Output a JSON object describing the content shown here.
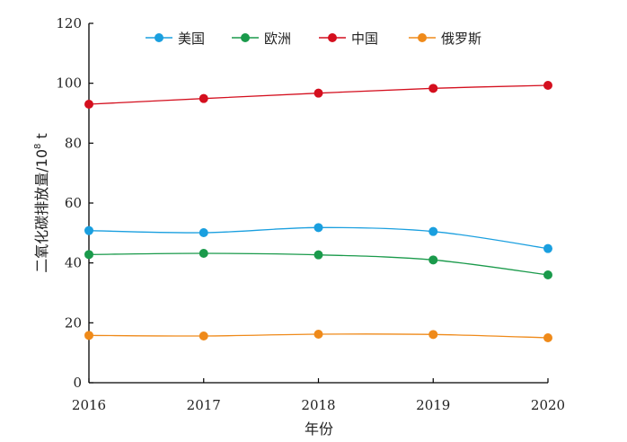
{
  "chart_data": {
    "type": "line",
    "title": "",
    "xlabel": "年份",
    "ylabel": "二氧化碳排放量/10",
    "ylabel_exponent": "8",
    "ylabel_unit": " t",
    "x": [
      "2016",
      "2017",
      "2018",
      "2019",
      "2020"
    ],
    "ylim": [
      0,
      120
    ],
    "yticks": [
      "0",
      "20",
      "40",
      "60",
      "80",
      "100",
      "120"
    ],
    "grid": false,
    "legend_position": "top",
    "series": [
      {
        "name": "美国",
        "color": "#1a9fdf",
        "values": [
          50.8,
          50.1,
          51.8,
          50.5,
          44.8
        ]
      },
      {
        "name": "欧洲",
        "color": "#1a9a4b",
        "values": [
          42.8,
          43.2,
          42.7,
          41.0,
          36.0
        ]
      },
      {
        "name": "中国",
        "color": "#d40f1e",
        "values": [
          93.0,
          94.9,
          96.7,
          98.3,
          99.3
        ]
      },
      {
        "name": "俄罗斯",
        "color": "#ef8a1a",
        "values": [
          15.8,
          15.6,
          16.2,
          16.1,
          15.0
        ]
      }
    ]
  }
}
